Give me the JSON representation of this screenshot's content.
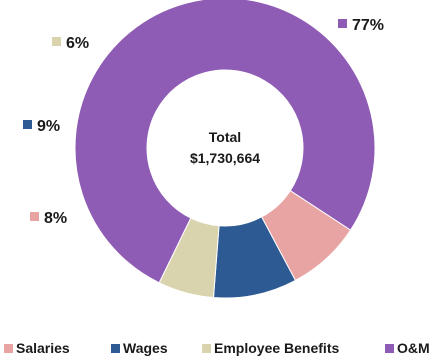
{
  "chart_data": {
    "type": "pie",
    "style": "donut",
    "center_label": {
      "line1": "Total",
      "line2": "$1,730,664"
    },
    "slices": [
      {
        "name": "Salaries",
        "value": 8,
        "label": "8%",
        "color": "#E8A3A3"
      },
      {
        "name": "Wages",
        "value": 9,
        "label": "9%",
        "color": "#2E5A94"
      },
      {
        "name": "Employee Benefits",
        "value": 6,
        "label": "6%",
        "color": "#D9D3AE"
      },
      {
        "name": "O&M",
        "value": 77,
        "label": "77%",
        "color": "#8E5BB5"
      }
    ],
    "legend_position": "bottom"
  }
}
